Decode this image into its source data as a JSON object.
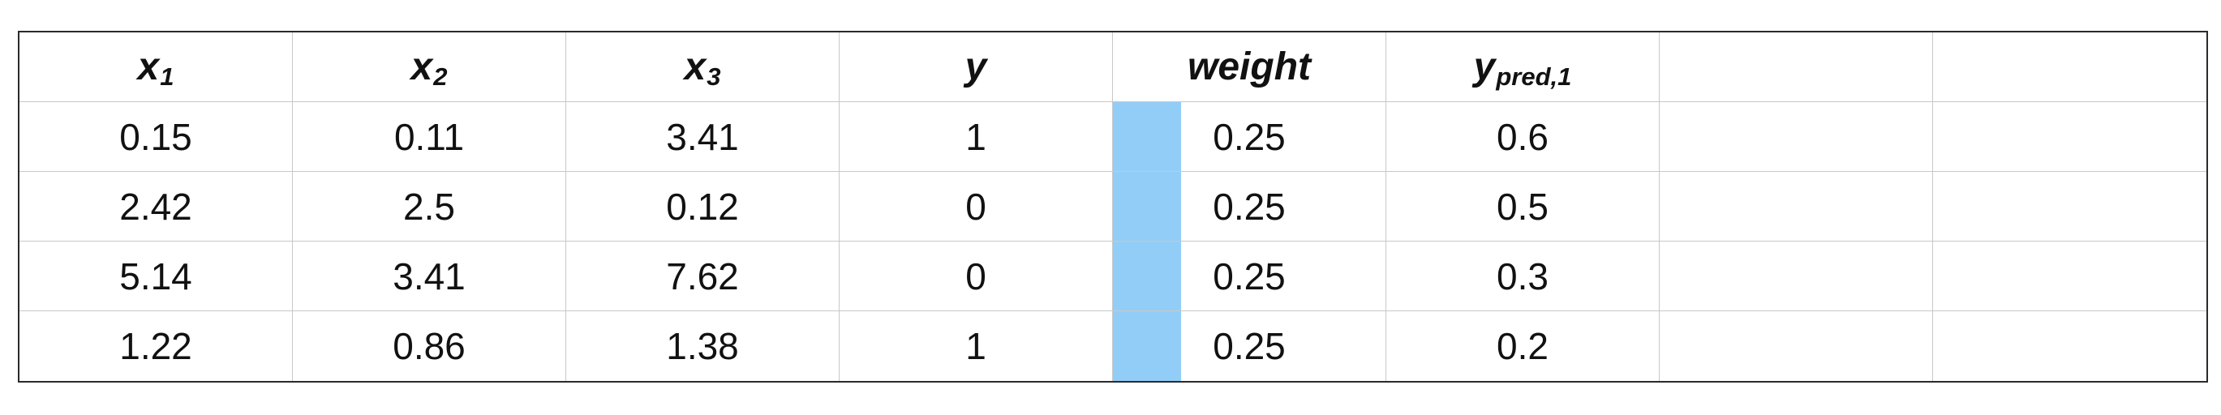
{
  "table": {
    "headers": [
      {
        "base": "x",
        "sub": "1"
      },
      {
        "base": "x",
        "sub": "2"
      },
      {
        "base": "x",
        "sub": "3"
      },
      {
        "base": "y",
        "sub": ""
      },
      {
        "base": "weight",
        "sub": ""
      },
      {
        "base": "y",
        "sub": "pred,1"
      },
      {
        "base": "",
        "sub": ""
      },
      {
        "base": "",
        "sub": ""
      }
    ],
    "rows": [
      {
        "x1": "0.15",
        "x2": "0.11",
        "x3": "3.41",
        "y": "1",
        "weight": "0.25",
        "weight_value": 0.25,
        "ypred": "0.6"
      },
      {
        "x1": "2.42",
        "x2": "2.5",
        "x3": "0.12",
        "y": "0",
        "weight": "0.25",
        "weight_value": 0.25,
        "ypred": "0.5"
      },
      {
        "x1": "5.14",
        "x2": "3.41",
        "x3": "7.62",
        "y": "0",
        "weight": "0.25",
        "weight_value": 0.25,
        "ypred": "0.3"
      },
      {
        "x1": "1.22",
        "x2": "0.86",
        "x3": "1.38",
        "y": "1",
        "weight": "0.25",
        "weight_value": 0.25,
        "ypred": "0.2"
      }
    ],
    "weight_bar_color": "#92cdf8"
  }
}
